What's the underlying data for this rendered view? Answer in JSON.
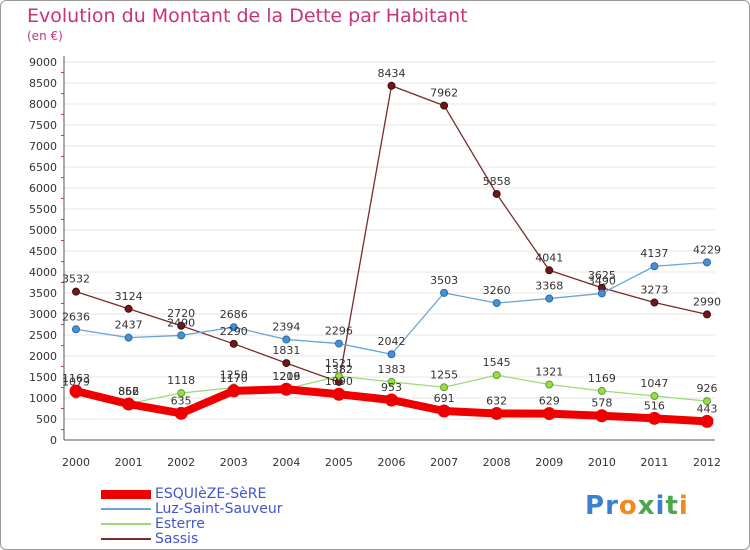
{
  "title": "Evolution du Montant de la Dette par Habitant",
  "subtitle": "(en €)",
  "logo": "Proxiti",
  "colors": {
    "ESQUIèZE-SèRE": "#ee0000",
    "Luz-Saint-Sauveur": "#6aa4d8",
    "Esterre": "#99dd77",
    "Sassis": "#7a2a2a"
  },
  "chart_data": {
    "type": "line",
    "x": [
      "2000",
      "2001",
      "2002",
      "2003",
      "2004",
      "2005",
      "2006",
      "2007",
      "2008",
      "2009",
      "2010",
      "2011",
      "2012"
    ],
    "ylim": [
      0,
      9000
    ],
    "yticks": [
      "0",
      "500",
      "1000",
      "1500",
      "2000",
      "2500",
      "3000",
      "3500",
      "4000",
      "4500",
      "5000",
      "5500",
      "6000",
      "6500",
      "7000",
      "7500",
      "8000",
      "8500",
      "9000"
    ],
    "grid": true,
    "legend": "bottom-left",
    "series": [
      {
        "name": "ESQUIèZE-SèRE",
        "values": [
          1163,
          856,
          635,
          1170,
          1209,
          1090,
          953,
          691,
          632,
          629,
          578,
          516,
          443
        ]
      },
      {
        "name": "Luz-Saint-Sauveur",
        "values": [
          2636,
          2437,
          2490,
          2686,
          2394,
          2296,
          2042,
          3503,
          3260,
          3368,
          3490,
          4137,
          4229
        ]
      },
      {
        "name": "Esterre",
        "values": [
          1079,
          862,
          1118,
          1250,
          1216,
          1521,
          1383,
          1255,
          1545,
          1321,
          1169,
          1047,
          926
        ]
      },
      {
        "name": "Sassis",
        "values": [
          3532,
          3124,
          2720,
          2290,
          1831,
          1382,
          8434,
          7962,
          5858,
          4041,
          3625,
          3273,
          2990
        ]
      }
    ]
  }
}
